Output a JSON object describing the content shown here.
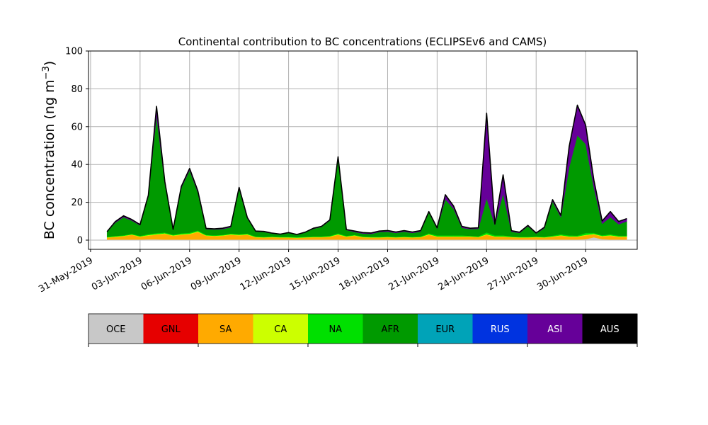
{
  "chart_data": {
    "type": "area",
    "title": "Continental contribution to BC concentrations (ECLIPSEv6 and CAMS)",
    "ylabel": "BC concentration (ng m",
    "ylabel_sup": "−3",
    "ylabel_end": ")",
    "xlabel": "",
    "ylim": [
      0,
      100
    ],
    "yticks": [
      "0",
      "20",
      "40",
      "60",
      "80",
      "100"
    ],
    "xlim": [
      "2019-05-30T21:00",
      "2019-07-03T03:00"
    ],
    "xticks": [
      {
        "date": "2019-05-31",
        "label": "31-May-2019"
      },
      {
        "date": "2019-06-03",
        "label": "03-Jun-2019"
      },
      {
        "date": "2019-06-06",
        "label": "06-Jun-2019"
      },
      {
        "date": "2019-06-09",
        "label": "09-Jun-2019"
      },
      {
        "date": "2019-06-12",
        "label": "12-Jun-2019"
      },
      {
        "date": "2019-06-15",
        "label": "15-Jun-2019"
      },
      {
        "date": "2019-06-18",
        "label": "18-Jun-2019"
      },
      {
        "date": "2019-06-21",
        "label": "21-Jun-2019"
      },
      {
        "date": "2019-06-24",
        "label": "24-Jun-2019"
      },
      {
        "date": "2019-06-27",
        "label": "27-Jun-2019"
      },
      {
        "date": "2019-06-30",
        "label": "30-Jun-2019"
      }
    ],
    "grid": true,
    "x": [
      "2019-06-01T00:00",
      "2019-06-01T12:00",
      "2019-06-02T00:00",
      "2019-06-02T12:00",
      "2019-06-03T00:00",
      "2019-06-03T12:00",
      "2019-06-04T00:00",
      "2019-06-04T12:00",
      "2019-06-05T00:00",
      "2019-06-05T12:00",
      "2019-06-06T00:00",
      "2019-06-06T12:00",
      "2019-06-07T00:00",
      "2019-06-07T12:00",
      "2019-06-08T00:00",
      "2019-06-08T12:00",
      "2019-06-09T00:00",
      "2019-06-09T12:00",
      "2019-06-10T00:00",
      "2019-06-10T12:00",
      "2019-06-11T00:00",
      "2019-06-11T12:00",
      "2019-06-12T00:00",
      "2019-06-12T12:00",
      "2019-06-13T00:00",
      "2019-06-13T12:00",
      "2019-06-14T00:00",
      "2019-06-14T12:00",
      "2019-06-15T00:00",
      "2019-06-15T12:00",
      "2019-06-16T00:00",
      "2019-06-16T12:00",
      "2019-06-17T00:00",
      "2019-06-17T12:00",
      "2019-06-18T00:00",
      "2019-06-18T12:00",
      "2019-06-19T00:00",
      "2019-06-19T12:00",
      "2019-06-20T00:00",
      "2019-06-20T12:00",
      "2019-06-21T00:00",
      "2019-06-21T12:00",
      "2019-06-22T00:00",
      "2019-06-22T12:00",
      "2019-06-23T00:00",
      "2019-06-23T12:00",
      "2019-06-24T00:00",
      "2019-06-24T12:00",
      "2019-06-25T00:00",
      "2019-06-25T12:00",
      "2019-06-26T00:00",
      "2019-06-26T12:00",
      "2019-06-27T00:00",
      "2019-06-27T12:00",
      "2019-06-28T00:00",
      "2019-06-28T12:00",
      "2019-06-29T00:00",
      "2019-06-29T12:00",
      "2019-06-30T00:00",
      "2019-06-30T12:00",
      "2019-07-01T00:00",
      "2019-07-01T12:00",
      "2019-07-02T00:00",
      "2019-07-02T12:00"
    ],
    "series": [
      {
        "name": "OCE",
        "color": "#c8c8c8",
        "values": [
          0.3,
          0.3,
          0.3,
          0.3,
          0.3,
          0.4,
          0.4,
          0.3,
          0.3,
          0.3,
          0.3,
          0.3,
          0.3,
          0.3,
          0.3,
          0.3,
          0.3,
          0.3,
          0.3,
          0.3,
          0.3,
          0.3,
          0.3,
          0.3,
          0.3,
          0.3,
          0.3,
          0.3,
          0.3,
          0.3,
          0.3,
          0.3,
          0.3,
          0.3,
          0.3,
          0.3,
          0.3,
          0.3,
          0.3,
          0.3,
          0.3,
          0.3,
          0.3,
          0.3,
          0.3,
          0.3,
          0.3,
          0.3,
          0.3,
          0.3,
          0.3,
          0.3,
          0.3,
          0.3,
          0.3,
          0.3,
          0.3,
          0.3,
          0.5,
          1.5,
          0.5,
          0.3,
          0.3,
          0.3
        ]
      },
      {
        "name": "GNL",
        "color": "#e60000",
        "values": [
          0,
          0,
          0,
          0,
          0,
          0,
          0,
          0,
          0,
          0,
          0,
          0,
          0,
          0,
          0,
          0,
          0,
          0,
          0,
          0,
          0,
          0,
          0,
          0,
          0,
          0,
          0,
          0,
          0,
          0,
          0,
          0,
          0,
          0,
          0,
          0,
          0,
          0,
          0,
          0,
          0,
          0,
          0,
          0,
          0,
          0,
          0,
          0,
          0,
          0,
          0,
          0,
          0,
          0,
          0,
          0,
          0,
          0,
          0,
          0,
          0,
          0,
          0,
          0
        ]
      },
      {
        "name": "SA",
        "color": "#ffaa00",
        "values": [
          1.0,
          1.4,
          1.8,
          2.5,
          1.5,
          2.0,
          2.5,
          3.0,
          2.0,
          2.5,
          2.8,
          4.0,
          2.0,
          1.8,
          2.0,
          2.5,
          2.2,
          2.5,
          1.2,
          1.0,
          1.2,
          1.0,
          1.0,
          0.8,
          1.0,
          1.2,
          1.2,
          1.5,
          2.5,
          1.5,
          2.0,
          1.2,
          1.0,
          1.0,
          1.2,
          1.0,
          1.2,
          1.0,
          1.2,
          2.5,
          1.5,
          1.5,
          1.5,
          1.5,
          1.5,
          1.2,
          2.5,
          1.5,
          1.5,
          1.2,
          1.0,
          1.0,
          1.2,
          1.0,
          1.5,
          2.0,
          1.5,
          1.5,
          2.0,
          1.5,
          1.5,
          2.0,
          1.5,
          1.5
        ]
      },
      {
        "name": "CA",
        "color": "#ccff00",
        "values": [
          0.2,
          0.2,
          0.2,
          0.2,
          0.2,
          0.3,
          0.3,
          0.3,
          0.2,
          0.3,
          0.3,
          0.3,
          0.2,
          0.2,
          0.2,
          0.3,
          0.3,
          0.3,
          0.2,
          0.2,
          0.2,
          0.2,
          0.2,
          0.2,
          0.2,
          0.2,
          0.2,
          0.2,
          0.3,
          0.2,
          0.2,
          0.2,
          0.2,
          0.2,
          0.2,
          0.2,
          0.2,
          0.2,
          0.2,
          0.3,
          0.2,
          0.2,
          0.2,
          0.2,
          0.2,
          0.2,
          0.3,
          0.2,
          0.2,
          0.2,
          0.2,
          0.2,
          0.2,
          0.2,
          0.2,
          0.3,
          0.2,
          0.2,
          0.3,
          0.3,
          0.2,
          0.3,
          0.2,
          0.2
        ]
      },
      {
        "name": "NA",
        "color": "#00e000",
        "values": [
          0.3,
          0.3,
          0.3,
          0.3,
          0.3,
          0.5,
          0.5,
          0.4,
          0.4,
          0.5,
          0.5,
          0.5,
          0.3,
          0.3,
          0.3,
          0.4,
          0.3,
          0.4,
          0.3,
          0.3,
          0.3,
          0.3,
          0.3,
          0.3,
          0.3,
          0.3,
          0.3,
          0.3,
          0.5,
          0.3,
          0.3,
          0.3,
          0.3,
          0.3,
          0.3,
          0.3,
          0.3,
          0.3,
          0.3,
          0.5,
          0.5,
          0.5,
          0.5,
          0.5,
          0.3,
          0.3,
          1.0,
          0.5,
          0.5,
          0.3,
          0.3,
          0.3,
          0.3,
          0.3,
          0.4,
          0.5,
          0.5,
          0.4,
          1.0,
          0.5,
          0.4,
          0.5,
          0.4,
          0.4
        ]
      },
      {
        "name": "AFR",
        "color": "#009a00",
        "values": [
          2.5,
          7.0,
          9.5,
          7.0,
          5.5,
          20.0,
          62.0,
          26.0,
          2.5,
          24.0,
          33.0,
          20.0,
          3.0,
          3.0,
          3.0,
          3.3,
          24.0,
          8.0,
          2.5,
          2.5,
          1.5,
          1.2,
          2.0,
          1.2,
          2.2,
          4.0,
          5.0,
          8.0,
          40.0,
          3.0,
          1.5,
          1.5,
          1.5,
          2.5,
          2.5,
          2.0,
          2.5,
          2.0,
          2.5,
          11.0,
          3.5,
          19.0,
          14.0,
          4.0,
          3.5,
          4.0,
          18.0,
          5.5,
          22.0,
          2.5,
          2.0,
          5.5,
          1.5,
          4.5,
          18.0,
          9.0,
          36.0,
          53.0,
          47.0,
          24.0,
          6.0,
          9.0,
          6.0,
          7.5
        ]
      },
      {
        "name": "EUR",
        "color": "#00a3b8",
        "values": [
          0,
          0,
          0,
          0,
          0,
          0,
          0,
          0,
          0,
          0,
          0,
          0,
          0,
          0,
          0,
          0,
          0,
          0,
          0,
          0,
          0,
          0,
          0,
          0,
          0,
          0,
          0,
          0,
          0,
          0,
          0,
          0,
          0,
          0,
          0,
          0,
          0,
          0,
          0,
          0,
          0,
          0,
          0,
          0,
          0,
          0,
          0,
          0,
          0,
          0,
          0,
          0,
          0,
          0,
          0,
          0,
          0,
          0,
          0,
          0,
          0,
          0,
          0,
          0
        ]
      },
      {
        "name": "RUS",
        "color": "#0033e0",
        "values": [
          0,
          0,
          0,
          0,
          0,
          0,
          0,
          0,
          0,
          0,
          0,
          0,
          0,
          0,
          0,
          0,
          0,
          0,
          0,
          0,
          0,
          0,
          0,
          0,
          0,
          0,
          0,
          0,
          0,
          0,
          0,
          0,
          0,
          0,
          0,
          0,
          0,
          0,
          0,
          0,
          0,
          0,
          0,
          0,
          0,
          0,
          0,
          0,
          0,
          0,
          0,
          0,
          0,
          0,
          0,
          0,
          0,
          0,
          0,
          0,
          0,
          0,
          0,
          0
        ]
      },
      {
        "name": "ASI",
        "color": "#660099",
        "values": [
          0.2,
          0.6,
          0.8,
          0.6,
          0.4,
          0.5,
          5.0,
          1.0,
          0.3,
          0.8,
          1.0,
          1.0,
          0.4,
          0.4,
          0.5,
          0.5,
          0.8,
          0.5,
          0.3,
          0.3,
          0.2,
          0.2,
          0.2,
          0.2,
          0.2,
          0.3,
          0.3,
          0.4,
          0.5,
          0.3,
          0.5,
          0.5,
          0.5,
          0.5,
          0.6,
          0.5,
          0.5,
          0.5,
          0.5,
          0.5,
          0.5,
          2.5,
          1.5,
          0.8,
          0.5,
          0.5,
          45.0,
          0.5,
          10.0,
          0.5,
          0.4,
          0.5,
          0.3,
          0.5,
          1.0,
          1.0,
          11.0,
          16.0,
          10.0,
          4.0,
          1.5,
          3.0,
          1.5,
          1.5
        ]
      }
    ],
    "total_line_color": "#000000",
    "legend": {
      "placement": "bottom",
      "entries": [
        {
          "label": "OCE",
          "color": "#c8c8c8"
        },
        {
          "label": "GNL",
          "color": "#e60000"
        },
        {
          "label": "SA",
          "color": "#ffaa00"
        },
        {
          "label": "CA",
          "color": "#ccff00"
        },
        {
          "label": "NA",
          "color": "#00e000"
        },
        {
          "label": "AFR",
          "color": "#009a00"
        },
        {
          "label": "EUR",
          "color": "#00a3b8"
        },
        {
          "label": "RUS",
          "color": "#0033e0"
        },
        {
          "label": "ASI",
          "color": "#660099"
        },
        {
          "label": "AUS",
          "color": "#000000"
        }
      ]
    }
  }
}
